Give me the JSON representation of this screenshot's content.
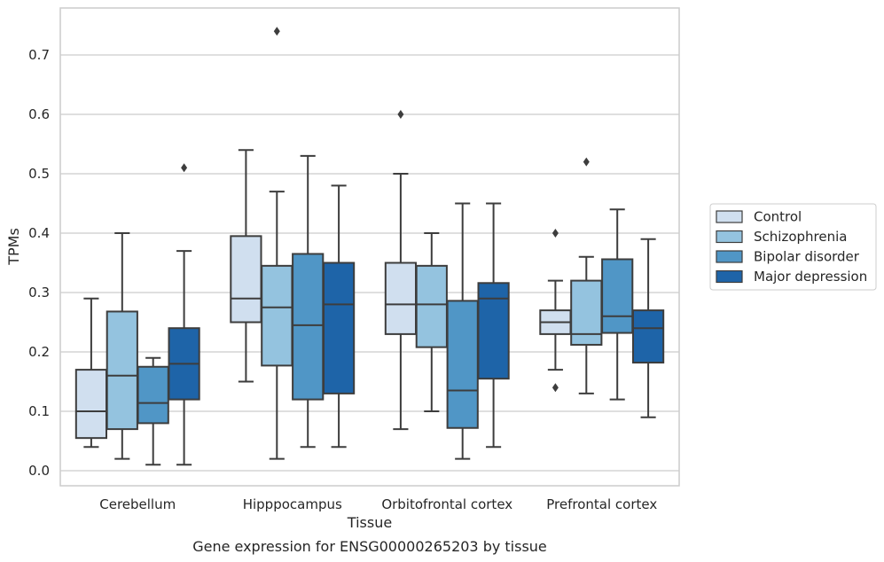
{
  "caption": "Gene expression for ENSG00000265203 by tissue",
  "chart_data": {
    "type": "box",
    "xlabel": "Tissue",
    "ylabel": "TPMs",
    "ylim": [
      -0.025,
      0.775
    ],
    "yticks": [
      0.0,
      0.1,
      0.2,
      0.3,
      0.4,
      0.5,
      0.6,
      0.7
    ],
    "ytick_labels": [
      "0.0",
      "0.1",
      "0.2",
      "0.3",
      "0.4",
      "0.5",
      "0.6",
      "0.7"
    ],
    "grid": "horizontal",
    "legend_position": "right",
    "categories": [
      "Cerebellum",
      "Hipppocampus",
      "Orbitofrontal cortex",
      "Prefrontal cortex"
    ],
    "series": [
      {
        "name": "Control",
        "color": "#d0dfef",
        "boxes": [
          {
            "whislo": 0.04,
            "q1": 0.055,
            "med": 0.1,
            "q3": 0.17,
            "whishi": 0.29,
            "fliers": []
          },
          {
            "whislo": 0.15,
            "q1": 0.25,
            "med": 0.29,
            "q3": 0.395,
            "whishi": 0.54,
            "fliers": []
          },
          {
            "whislo": 0.07,
            "q1": 0.23,
            "med": 0.28,
            "q3": 0.35,
            "whishi": 0.5,
            "fliers": [
              0.6
            ]
          },
          {
            "whislo": 0.17,
            "q1": 0.23,
            "med": 0.25,
            "q3": 0.27,
            "whishi": 0.32,
            "fliers": [
              0.14,
              0.4
            ]
          }
        ]
      },
      {
        "name": "Schizophrenia",
        "color": "#94c3df",
        "boxes": [
          {
            "whislo": 0.02,
            "q1": 0.07,
            "med": 0.16,
            "q3": 0.268,
            "whishi": 0.4,
            "fliers": []
          },
          {
            "whislo": 0.02,
            "q1": 0.177,
            "med": 0.275,
            "q3": 0.345,
            "whishi": 0.47,
            "fliers": [
              0.74
            ]
          },
          {
            "whislo": 0.1,
            "q1": 0.208,
            "med": 0.28,
            "q3": 0.345,
            "whishi": 0.4,
            "fliers": []
          },
          {
            "whislo": 0.13,
            "q1": 0.212,
            "med": 0.23,
            "q3": 0.32,
            "whishi": 0.36,
            "fliers": [
              0.52
            ]
          }
        ]
      },
      {
        "name": "Bipolar disorder",
        "color": "#5096c6",
        "boxes": [
          {
            "whislo": 0.01,
            "q1": 0.08,
            "med": 0.114,
            "q3": 0.175,
            "whishi": 0.19,
            "fliers": []
          },
          {
            "whislo": 0.04,
            "q1": 0.12,
            "med": 0.245,
            "q3": 0.365,
            "whishi": 0.53,
            "fliers": []
          },
          {
            "whislo": 0.02,
            "q1": 0.072,
            "med": 0.135,
            "q3": 0.286,
            "whishi": 0.45,
            "fliers": []
          },
          {
            "whislo": 0.12,
            "q1": 0.232,
            "med": 0.26,
            "q3": 0.356,
            "whishi": 0.44,
            "fliers": []
          }
        ]
      },
      {
        "name": "Major depression",
        "color": "#1e64a8",
        "boxes": [
          {
            "whislo": 0.01,
            "q1": 0.12,
            "med": 0.18,
            "q3": 0.24,
            "whishi": 0.37,
            "fliers": [
              0.51
            ]
          },
          {
            "whislo": 0.04,
            "q1": 0.13,
            "med": 0.28,
            "q3": 0.35,
            "whishi": 0.48,
            "fliers": []
          },
          {
            "whislo": 0.04,
            "q1": 0.155,
            "med": 0.29,
            "q3": 0.316,
            "whishi": 0.45,
            "fliers": []
          },
          {
            "whislo": 0.09,
            "q1": 0.182,
            "med": 0.24,
            "q3": 0.27,
            "whishi": 0.39,
            "fliers": []
          }
        ]
      }
    ]
  }
}
